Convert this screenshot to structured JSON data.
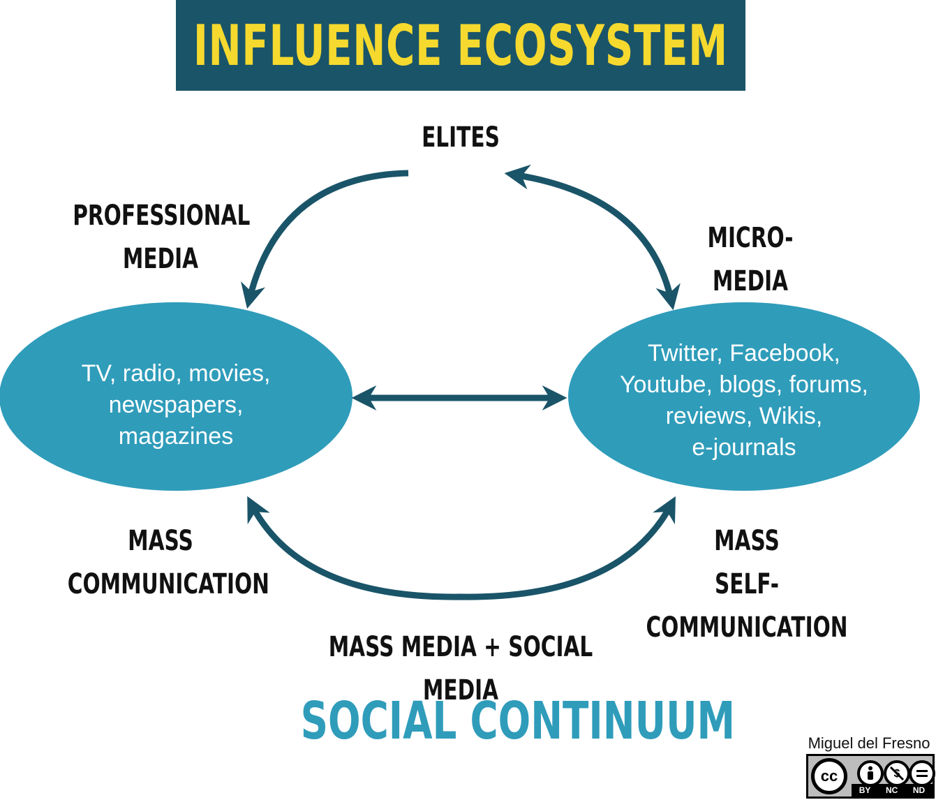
{
  "title": "INFLUENCE ECOSYSTEM",
  "colors": {
    "title_bg": "#1a5468",
    "title_text": "#f5d92e",
    "ellipse_fill": "#2f9cba",
    "arrow": "#1a5468",
    "footer_text": "#2f9cba"
  },
  "nodes": {
    "top_label": "ELITES",
    "left_text": "TV, radio, movies,\nnewspapers,\nmagazines",
    "right_text": "Twitter, Facebook,\nYoutube, blogs, forums,\nreviews, Wikis,\ne-journals"
  },
  "edge_labels": {
    "top_left": "PROFESSIONAL\nMEDIA",
    "top_right": "MICRO-MEDIA",
    "bottom_left": "MASS\nCOMMUNICATION",
    "bottom_right": "MASS\nSELF-COMMUNICATION",
    "bottom_center": "MASS MEDIA + SOCIAL MEDIA"
  },
  "footer": {
    "title": "SOCIAL CONTINUUM",
    "author": "Miguel del Fresno",
    "license": {
      "cc": "cc",
      "terms": [
        "BY",
        "NC",
        "ND"
      ],
      "icons": [
        "person-icon",
        "no-dollar-icon",
        "equals-icon"
      ]
    }
  }
}
